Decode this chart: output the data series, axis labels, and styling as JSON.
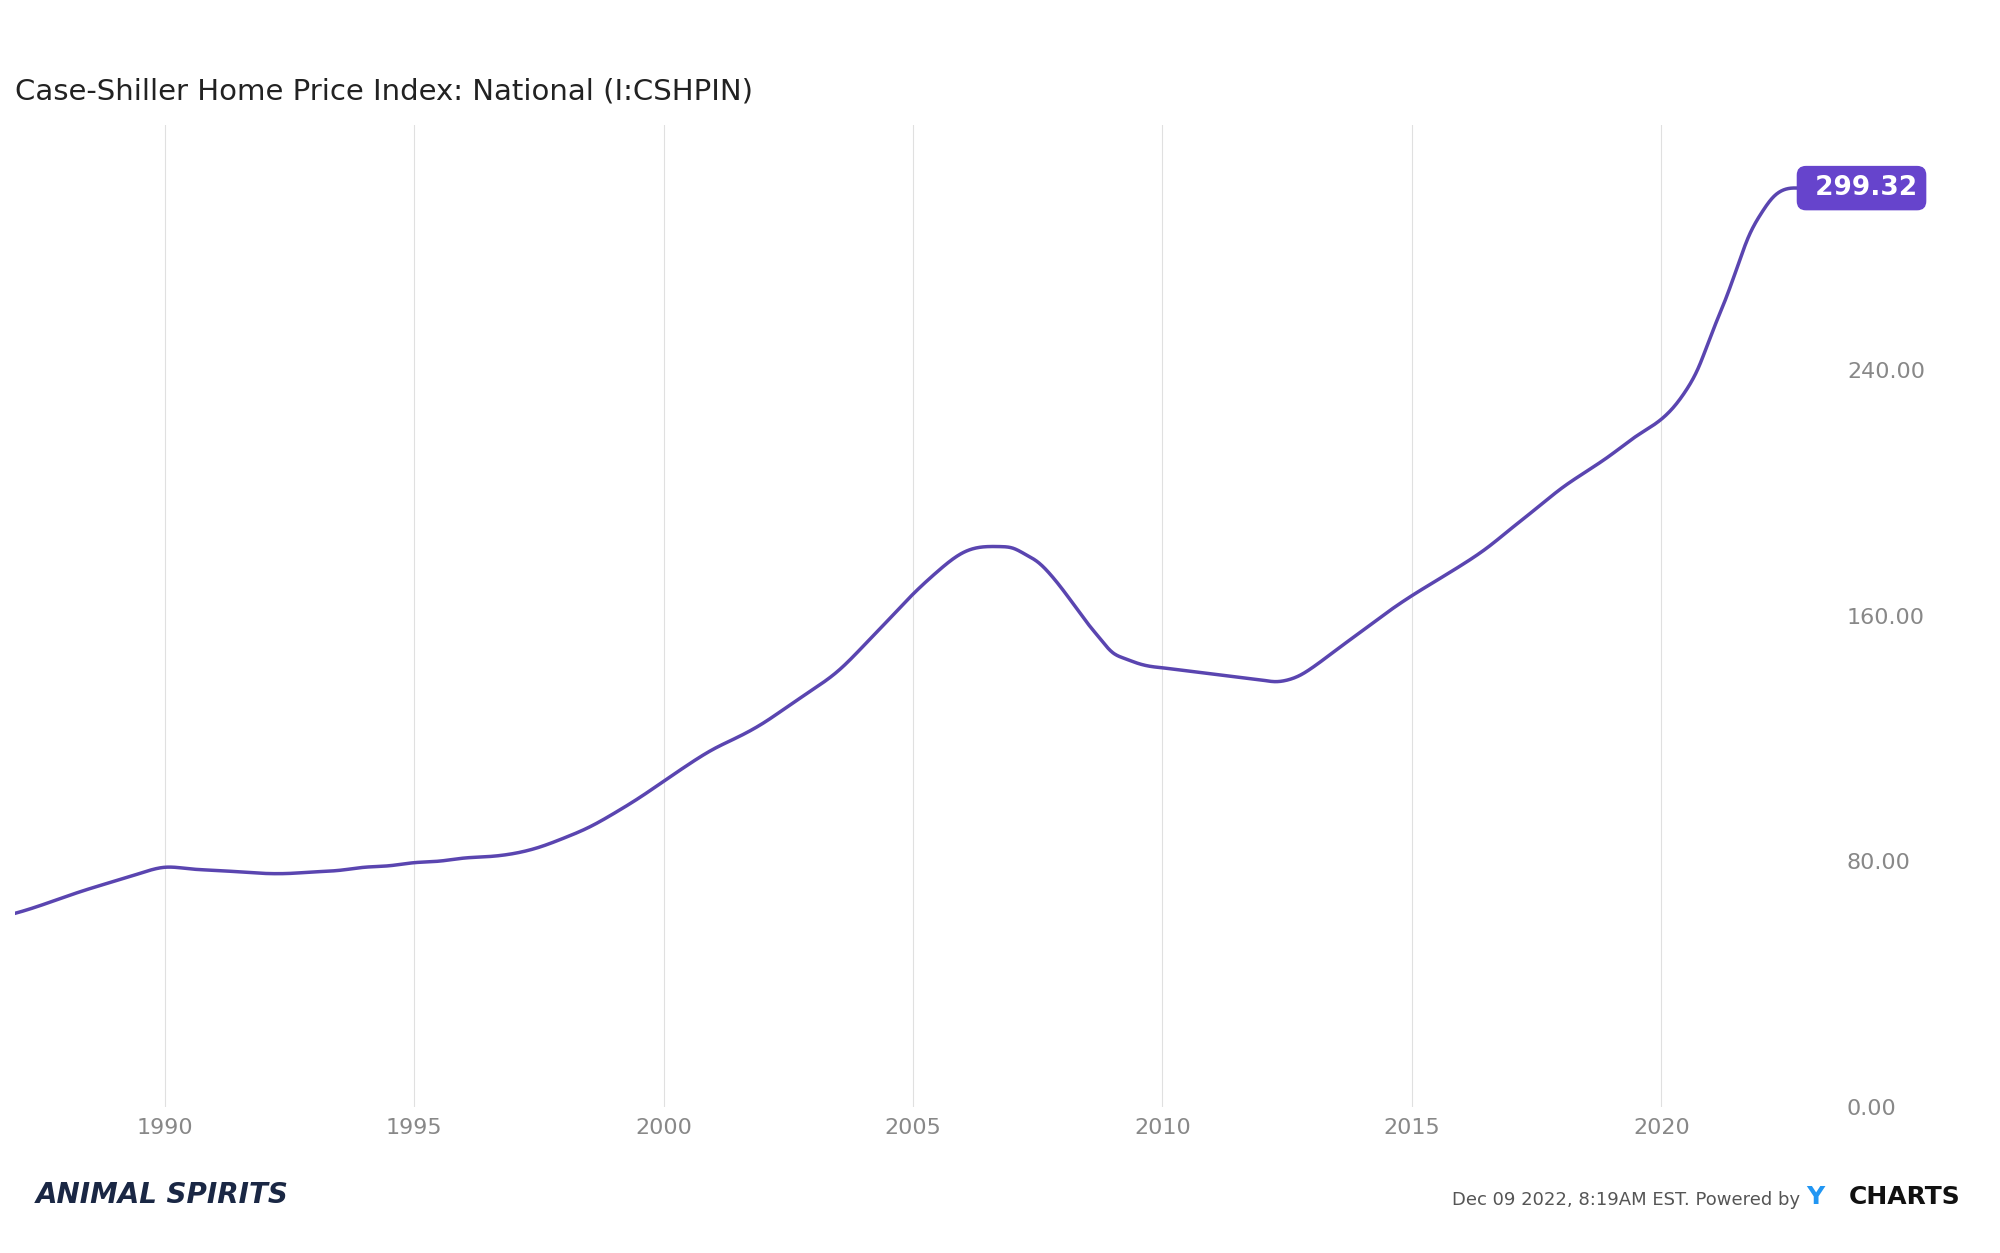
{
  "title": "Case-Shiller Home Price Index: National (I:CSHPIN)",
  "title_fontsize": 21,
  "line_color": "#5a45b0",
  "background_color": "#ffffff",
  "grid_color": "#e0e0e0",
  "last_value": 299.32,
  "last_value_bg": "#6644cc",
  "last_value_text": "#ffffff",
  "footer_right_plain": "Dec 09 2022, 8:19AM EST. Powered by ",
  "footer_right_y": "Y",
  "footer_right_charts": "CHARTS",
  "ylabel_right_ticks": [
    "0.00",
    "80.00",
    "160.00",
    "240.00"
  ],
  "ytick_values": [
    0,
    80,
    160,
    240
  ],
  "x_ticks": [
    1990,
    1995,
    2000,
    2005,
    2010,
    2015,
    2020
  ],
  "xlim": [
    1987.0,
    2023.5
  ],
  "ylim": [
    0,
    320
  ],
  "control_x": [
    1987.0,
    1987.5,
    1988.3,
    1989.0,
    1989.5,
    1990.0,
    1990.5,
    1991.0,
    1991.5,
    1992.0,
    1992.5,
    1993.0,
    1993.5,
    1994.0,
    1994.5,
    1995.0,
    1995.5,
    1996.0,
    1996.5,
    1997.0,
    1997.5,
    1998.0,
    1998.5,
    1999.0,
    1999.5,
    2000.0,
    2000.5,
    2001.0,
    2001.5,
    2002.0,
    2002.5,
    2003.0,
    2003.5,
    2004.0,
    2004.5,
    2005.0,
    2005.5,
    2006.0,
    2006.25,
    2006.5,
    2006.75,
    2007.0,
    2007.25,
    2007.5,
    2007.75,
    2008.0,
    2008.25,
    2008.5,
    2008.75,
    2009.0,
    2009.25,
    2009.5,
    2009.75,
    2010.0,
    2010.25,
    2010.5,
    2010.75,
    2011.0,
    2011.25,
    2011.5,
    2011.75,
    2012.0,
    2012.25,
    2012.5,
    2012.75,
    2013.0,
    2013.5,
    2014.0,
    2014.5,
    2015.0,
    2015.5,
    2016.0,
    2016.5,
    2017.0,
    2017.5,
    2018.0,
    2018.5,
    2019.0,
    2019.5,
    2020.0,
    2020.25,
    2020.5,
    2020.75,
    2021.0,
    2021.25,
    2021.5,
    2021.75,
    2022.0,
    2022.25,
    2022.5,
    2022.75
  ],
  "control_y": [
    63.0,
    65.5,
    70.0,
    73.5,
    76.0,
    78.0,
    77.5,
    77.0,
    76.5,
    76.0,
    76.0,
    76.5,
    77.0,
    78.0,
    78.5,
    79.5,
    80.0,
    81.0,
    81.5,
    82.5,
    84.5,
    87.5,
    91.0,
    95.5,
    100.5,
    106.0,
    111.5,
    116.5,
    120.5,
    125.0,
    130.5,
    136.0,
    142.0,
    150.0,
    158.5,
    167.0,
    174.5,
    180.5,
    182.0,
    182.5,
    182.5,
    182.0,
    180.0,
    177.5,
    173.5,
    168.5,
    163.0,
    157.5,
    152.5,
    148.0,
    146.0,
    144.5,
    143.5,
    143.0,
    142.5,
    142.0,
    141.5,
    141.0,
    140.5,
    140.0,
    139.5,
    139.0,
    138.5,
    139.0,
    140.5,
    143.0,
    149.0,
    155.0,
    161.0,
    166.5,
    171.5,
    176.5,
    182.0,
    188.5,
    195.0,
    201.5,
    207.0,
    212.5,
    218.5,
    224.0,
    228.0,
    233.5,
    241.0,
    251.5,
    261.5,
    272.5,
    283.5,
    291.0,
    296.5,
    299.0,
    299.32
  ]
}
